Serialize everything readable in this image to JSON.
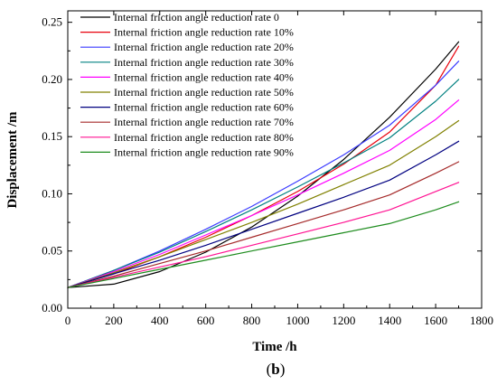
{
  "chart_data": {
    "type": "line",
    "xlabel": "Time /h",
    "ylabel": "Displacement /m",
    "caption": {
      "open": "(",
      "letter": "b",
      "close": ")"
    },
    "xlim": [
      0,
      1800
    ],
    "ylim": [
      0.0,
      0.26
    ],
    "xticks": [
      0,
      200,
      400,
      600,
      800,
      1000,
      1200,
      1400,
      1600,
      1800
    ],
    "yticks": [
      0.0,
      0.05,
      0.1,
      0.15,
      0.2,
      0.25
    ],
    "ytick_labels": [
      "0.00",
      "0.05",
      "0.10",
      "0.15",
      "0.20",
      "0.25"
    ],
    "grid": false,
    "legend_position": "top-left",
    "series": [
      {
        "name": "Internal friction angle reduction rate 0",
        "color": "#000000",
        "x": [
          0,
          200,
          400,
          600,
          800,
          1000,
          1200,
          1400,
          1600,
          1700
        ],
        "y": [
          0.018,
          0.021,
          0.032,
          0.049,
          0.071,
          0.098,
          0.13,
          0.167,
          0.209,
          0.233
        ]
      },
      {
        "name": "Internal friction angle reduction rate 10%",
        "color": "#e8000b",
        "x": [
          0,
          200,
          400,
          600,
          800,
          1000,
          1200,
          1400,
          1600,
          1700
        ],
        "y": [
          0.018,
          0.03,
          0.045,
          0.062,
          0.081,
          0.102,
          0.126,
          0.154,
          0.195,
          0.229
        ]
      },
      {
        "name": "Internal friction angle reduction rate 20%",
        "color": "#3a3aff",
        "x": [
          0,
          200,
          400,
          600,
          800,
          1000,
          1200,
          1400,
          1600,
          1700
        ],
        "y": [
          0.018,
          0.033,
          0.05,
          0.069,
          0.089,
          0.111,
          0.134,
          0.16,
          0.195,
          0.216
        ]
      },
      {
        "name": "Internal friction angle reduction rate 30%",
        "color": "#008080",
        "x": [
          0,
          200,
          400,
          600,
          800,
          1000,
          1200,
          1400,
          1600,
          1700
        ],
        "y": [
          0.018,
          0.033,
          0.049,
          0.067,
          0.086,
          0.106,
          0.127,
          0.149,
          0.181,
          0.2
        ]
      },
      {
        "name": "Internal friction angle reduction rate 40%",
        "color": "#ff00ff",
        "x": [
          0,
          200,
          400,
          600,
          800,
          1000,
          1200,
          1400,
          1600,
          1700
        ],
        "y": [
          0.018,
          0.032,
          0.047,
          0.064,
          0.081,
          0.099,
          0.118,
          0.138,
          0.165,
          0.182
        ]
      },
      {
        "name": "Internal friction angle reduction rate 50%",
        "color": "#808000",
        "x": [
          0,
          200,
          400,
          600,
          800,
          1000,
          1200,
          1400,
          1600,
          1700
        ],
        "y": [
          0.018,
          0.031,
          0.045,
          0.06,
          0.075,
          0.091,
          0.108,
          0.125,
          0.15,
          0.164
        ]
      },
      {
        "name": "Internal friction angle reduction rate 60%",
        "color": "#000080",
        "x": [
          0,
          200,
          400,
          600,
          800,
          1000,
          1200,
          1400,
          1600,
          1700
        ],
        "y": [
          0.018,
          0.03,
          0.042,
          0.055,
          0.069,
          0.083,
          0.097,
          0.112,
          0.134,
          0.146
        ]
      },
      {
        "name": "Internal friction angle reduction rate 70%",
        "color": "#a52a2a",
        "x": [
          0,
          200,
          400,
          600,
          800,
          1000,
          1200,
          1400,
          1600,
          1700
        ],
        "y": [
          0.018,
          0.028,
          0.039,
          0.05,
          0.062,
          0.074,
          0.086,
          0.099,
          0.118,
          0.128
        ]
      },
      {
        "name": "Internal friction angle reduction rate 80%",
        "color": "#ff1493",
        "x": [
          0,
          200,
          400,
          600,
          800,
          1000,
          1200,
          1400,
          1600,
          1700
        ],
        "y": [
          0.018,
          0.027,
          0.036,
          0.045,
          0.055,
          0.065,
          0.075,
          0.086,
          0.102,
          0.11
        ]
      },
      {
        "name": "Internal friction angle reduction rate 90%",
        "color": "#1e8c1e",
        "x": [
          0,
          200,
          400,
          600,
          800,
          1000,
          1200,
          1400,
          1600,
          1700
        ],
        "y": [
          0.018,
          0.026,
          0.034,
          0.042,
          0.05,
          0.058,
          0.066,
          0.074,
          0.086,
          0.093
        ]
      }
    ]
  }
}
